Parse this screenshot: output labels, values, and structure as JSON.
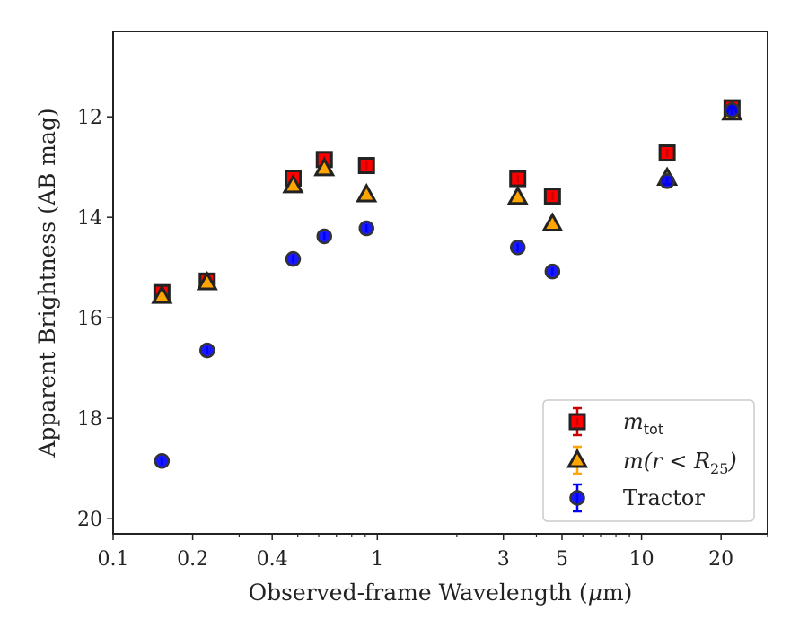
{
  "chart_data": {
    "type": "scatter",
    "title": "",
    "xlabel": "Observed-frame Wavelength (μm)",
    "ylabel": "Apparent Brightness (AB mag)",
    "xscale": "log",
    "xlim": [
      0.1,
      30
    ],
    "ylim": [
      20.3,
      10.3
    ],
    "y_inverted": true,
    "x_ticks": [
      {
        "value": 0.1,
        "label": "0.1"
      },
      {
        "value": 0.2,
        "label": "0.2"
      },
      {
        "value": 0.4,
        "label": "0.4"
      },
      {
        "value": 1,
        "label": "1"
      },
      {
        "value": 3,
        "label": "3"
      },
      {
        "value": 5,
        "label": "5"
      },
      {
        "value": 10,
        "label": "10"
      },
      {
        "value": 20,
        "label": "20"
      }
    ],
    "y_ticks": [
      {
        "value": 12,
        "label": "12"
      },
      {
        "value": 14,
        "label": "14"
      },
      {
        "value": 16,
        "label": "16"
      },
      {
        "value": 18,
        "label": "18"
      },
      {
        "value": 20,
        "label": "20"
      }
    ],
    "legend_position": "bottom-right",
    "series": [
      {
        "name": "m_tot",
        "marker": "square",
        "color": "#ff0000",
        "edge_color": "#222222",
        "error_color": "#cc0000",
        "x": [
          0.153,
          0.227,
          0.48,
          0.63,
          0.91,
          3.4,
          4.6,
          12.5,
          22.0
        ],
        "y": [
          15.5,
          15.27,
          13.22,
          12.85,
          12.97,
          13.23,
          13.58,
          12.72,
          11.82
        ]
      },
      {
        "name": "m(r < R25)",
        "marker": "triangle",
        "color": "#ffa500",
        "edge_color": "#222222",
        "error_color": "#ffa500",
        "x": [
          0.153,
          0.227,
          0.48,
          0.63,
          0.91,
          3.4,
          4.6,
          12.5,
          22.0
        ],
        "y": [
          15.57,
          15.3,
          13.37,
          13.03,
          13.55,
          13.6,
          14.13,
          13.22,
          11.92
        ]
      },
      {
        "name": "Tractor",
        "marker": "circle",
        "color": "#0000ff",
        "edge_color": "#333333",
        "error_color": "#0000ff",
        "x": [
          0.153,
          0.227,
          0.48,
          0.63,
          0.91,
          3.4,
          4.6,
          12.5,
          22.0
        ],
        "y": [
          18.85,
          16.65,
          14.83,
          14.38,
          14.22,
          14.6,
          15.08,
          13.28,
          11.87
        ]
      }
    ]
  },
  "legend": {
    "mtot_base": "m",
    "mtot_sub": "tot",
    "mr_prefix": "m(r < R",
    "mr_sub": "25",
    "mr_suffix": ")",
    "tractor": "Tractor"
  },
  "labels": {
    "xlabel_prefix": "Observed-frame Wavelength (",
    "xlabel_mu": "μ",
    "xlabel_suffix": "m)",
    "ylabel": "Apparent Brightness (AB mag)"
  }
}
